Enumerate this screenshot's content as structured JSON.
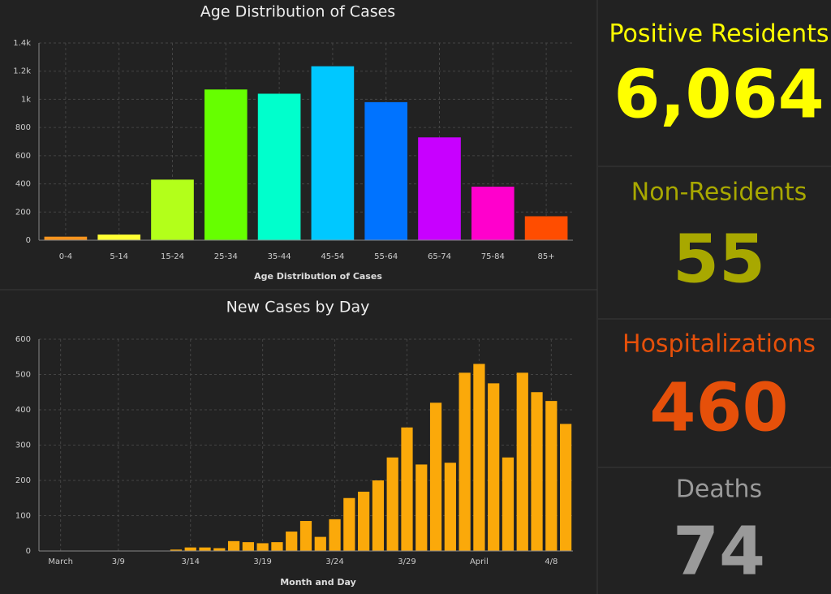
{
  "chart_data": [
    {
      "type": "bar",
      "title": "Age Distribution of Cases",
      "x_label": "Age Distribution of Cases",
      "categories": [
        "0-4",
        "5-14",
        "15-24",
        "25-34",
        "35-44",
        "45-54",
        "55-64",
        "65-74",
        "75-84",
        "85+"
      ],
      "values": [
        25,
        40,
        430,
        1070,
        1040,
        1235,
        980,
        730,
        380,
        170
      ],
      "colors": [
        "#f7941d",
        "#ffff33",
        "#b3ff1a",
        "#66ff00",
        "#00ffcc",
        "#00c8ff",
        "#0073ff",
        "#c800ff",
        "#ff00cc",
        "#ff4d00"
      ],
      "ylim": [
        0,
        1400
      ],
      "yticks": [
        0,
        200,
        400,
        600,
        800,
        {
          "value": 1000,
          "label": "1k"
        },
        {
          "value": 1200,
          "label": "1.2k"
        },
        {
          "value": 1400,
          "label": "1.4k"
        }
      ],
      "grid": true
    },
    {
      "type": "bar",
      "title": "New Cases by Day",
      "x_label": "Month and Day",
      "categories": [
        null,
        "March",
        null,
        null,
        null,
        "3/9",
        null,
        null,
        null,
        null,
        "3/14",
        null,
        null,
        null,
        null,
        "3/19",
        null,
        null,
        null,
        null,
        "3/24",
        null,
        null,
        null,
        null,
        "3/29",
        null,
        null,
        null,
        null,
        "April",
        null,
        null,
        null,
        null,
        "4/8",
        null
      ],
      "values": [
        1,
        0,
        0,
        0,
        0,
        0,
        0,
        0,
        1,
        4,
        10,
        10,
        8,
        28,
        25,
        22,
        25,
        55,
        85,
        40,
        90,
        150,
        168,
        200,
        265,
        350,
        245,
        420,
        250,
        505,
        530,
        475,
        265,
        505,
        450,
        425,
        360
      ],
      "color": "#fba90a",
      "ylim": [
        0,
        600
      ],
      "yticks": [
        0,
        100,
        200,
        300,
        400,
        500,
        600
      ],
      "grid": true
    }
  ],
  "indicators": [
    {
      "title": "Positive Residents",
      "value": "6,064",
      "color": "#ffff00"
    },
    {
      "title": "Non-Residents",
      "value": "55",
      "color": "#a8a800"
    },
    {
      "title": "Hospitalizations",
      "value": "460",
      "color": "#e6500a"
    },
    {
      "title": "Deaths",
      "value": "74",
      "color": "#9a9a9a"
    }
  ]
}
